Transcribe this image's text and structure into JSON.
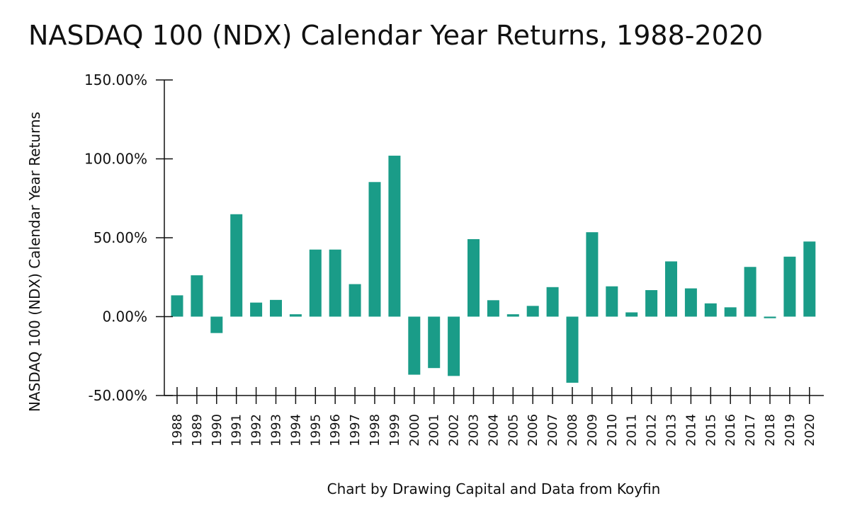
{
  "chart_data": {
    "type": "bar",
    "title": "NASDAQ 100 (NDX) Calendar Year Returns, 1988-2020",
    "xlabel": "Chart by Drawing Capital and Data from Koyfin",
    "ylabel": "NASDAQ 100 (NDX) Calendar Year Returns",
    "ylim": [
      -50,
      150
    ],
    "yticks": [
      -50,
      0,
      50,
      100,
      150
    ],
    "ytick_labels": [
      "-50.00%",
      "0.00%",
      "50.00%",
      "100.00%",
      "150.00%"
    ],
    "categories": [
      "1988",
      "1989",
      "1990",
      "1991",
      "1992",
      "1993",
      "1994",
      "1995",
      "1996",
      "1997",
      "1998",
      "1999",
      "2000",
      "2001",
      "2002",
      "2003",
      "2004",
      "2005",
      "2006",
      "2007",
      "2008",
      "2009",
      "2010",
      "2011",
      "2012",
      "2013",
      "2014",
      "2015",
      "2016",
      "2017",
      "2018",
      "2019",
      "2020"
    ],
    "values": [
      13.5,
      26.2,
      -10.4,
      64.9,
      8.9,
      10.6,
      1.5,
      42.5,
      42.5,
      20.6,
      85.3,
      102.0,
      -36.8,
      -32.6,
      -37.6,
      49.1,
      10.4,
      1.5,
      6.8,
      18.7,
      -41.9,
      53.5,
      19.2,
      2.7,
      16.8,
      35.0,
      17.9,
      8.4,
      5.9,
      31.5,
      -1.0,
      38.0,
      47.6
    ],
    "bar_color": "#1a9c88",
    "grid": false,
    "legend": "none"
  }
}
